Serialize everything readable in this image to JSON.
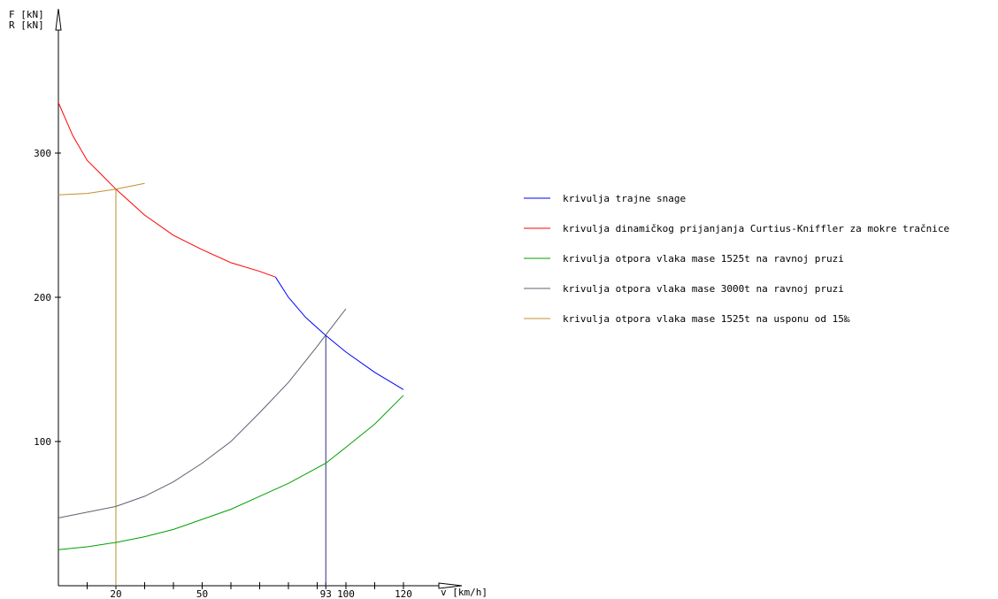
{
  "chart_data": {
    "type": "line",
    "y_axis_label_line1": "F [kN]",
    "y_axis_label_line2": "R [kN]",
    "x_axis_label": "v [km/h]",
    "xlim": [
      0,
      135
    ],
    "ylim": [
      0,
      395
    ],
    "x_tick_labels": [
      {
        "value": 20,
        "label": "20"
      },
      {
        "value": 50,
        "label": "50"
      },
      {
        "value": 93,
        "label": "93"
      },
      {
        "value": 100,
        "label": "100"
      },
      {
        "value": 120,
        "label": "120"
      }
    ],
    "x_minor_ticks": [
      10,
      30,
      40,
      60,
      70,
      80,
      90,
      110
    ],
    "y_tick_labels": [
      {
        "value": 100,
        "label": "100"
      },
      {
        "value": 200,
        "label": "200"
      },
      {
        "value": 300,
        "label": "300"
      }
    ],
    "grid": false,
    "legend_position": "right",
    "series": [
      {
        "name": "krivulja trajne snage",
        "color": "#0000ff",
        "points": [
          [
            75.5,
            214
          ],
          [
            80,
            200
          ],
          [
            86,
            186
          ],
          [
            93,
            173.5
          ],
          [
            100,
            162
          ],
          [
            110,
            148
          ],
          [
            120,
            136
          ]
        ]
      },
      {
        "name": "krivulja dinamičkog prijanjanja Curtius-Kniffler za mokre tračnice",
        "color": "#ff0000",
        "points": [
          [
            0,
            335
          ],
          [
            5,
            312
          ],
          [
            10,
            295
          ],
          [
            15,
            285
          ],
          [
            20,
            275
          ],
          [
            30,
            257
          ],
          [
            40,
            243
          ],
          [
            50,
            233
          ],
          [
            60,
            224
          ],
          [
            70,
            218
          ],
          [
            75.5,
            214
          ]
        ]
      },
      {
        "name": "krivulja otpora vlaka mase 1525t na ravnoj pruzi",
        "color": "#00a000",
        "points": [
          [
            0,
            25
          ],
          [
            10,
            27
          ],
          [
            20,
            30
          ],
          [
            30,
            34
          ],
          [
            40,
            39
          ],
          [
            50,
            46
          ],
          [
            60,
            53
          ],
          [
            70,
            62
          ],
          [
            80,
            71
          ],
          [
            93,
            85
          ],
          [
            100,
            96
          ],
          [
            110,
            112
          ],
          [
            120,
            132
          ]
        ]
      },
      {
        "name": "krivulja otpora vlaka mase 3000t na ravnoj pruzi",
        "color": "#606070",
        "points": [
          [
            0,
            47
          ],
          [
            10,
            51
          ],
          [
            20,
            55
          ],
          [
            30,
            62
          ],
          [
            40,
            72
          ],
          [
            50,
            85
          ],
          [
            60,
            100
          ],
          [
            70,
            120
          ],
          [
            80,
            141
          ],
          [
            90,
            166
          ],
          [
            93,
            174
          ],
          [
            100,
            192
          ]
        ]
      },
      {
        "name": "krivulja otpora vlaka mase 1525t na usponu od 15‰",
        "color": "#c09030",
        "points": [
          [
            0,
            271
          ],
          [
            10,
            272
          ],
          [
            20,
            275
          ],
          [
            30,
            279
          ]
        ]
      }
    ],
    "markers": [
      {
        "x": 20,
        "y": 275,
        "color": "#b09020"
      },
      {
        "x": 93,
        "y": 174,
        "color": "#303080"
      }
    ]
  }
}
